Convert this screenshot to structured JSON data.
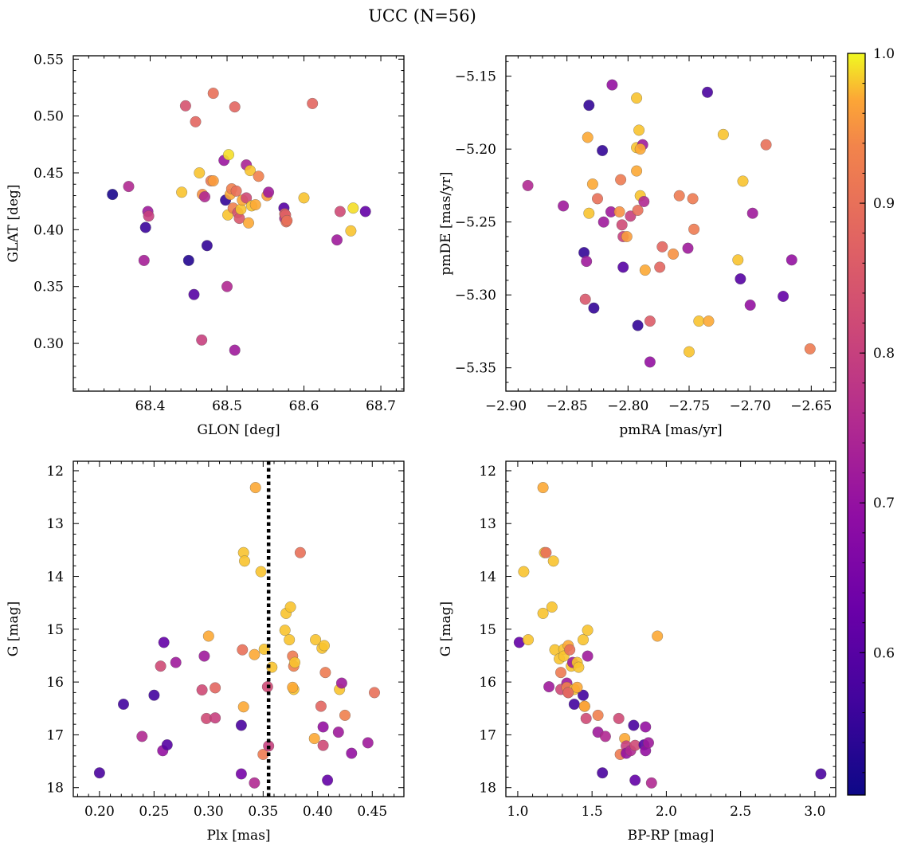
{
  "figure_title": "UCC (N=56)",
  "colorbar": {
    "colormap": "plasma",
    "range": [
      0.505,
      1.0
    ],
    "ticks": [
      0.6,
      0.7,
      0.8,
      0.9,
      1.0
    ],
    "tick_labels": [
      "0.6",
      "0.7",
      "0.8",
      "0.9",
      "1.0"
    ]
  },
  "chart_data": [
    {
      "type": "scatter",
      "xlabel": "GLON [deg]",
      "ylabel": "GLAT [deg]",
      "xlim": [
        68.3,
        68.73
      ],
      "ylim": [
        0.258,
        0.553
      ],
      "y_inverted": false,
      "xticks": [
        68.4,
        68.5,
        68.6,
        68.7
      ],
      "xtick_labels": [
        "68.4",
        "68.5",
        "68.6",
        "68.7"
      ],
      "yticks": [
        0.3,
        0.35,
        0.4,
        0.45,
        0.5,
        0.55
      ],
      "ytick_labels": [
        "0.30",
        "0.35",
        "0.40",
        "0.45",
        "0.50",
        "0.55"
      ],
      "points": [
        [
          68.351,
          0.431,
          0.52
        ],
        [
          68.372,
          0.438,
          0.75
        ],
        [
          68.392,
          0.373,
          0.73
        ],
        [
          68.394,
          0.402,
          0.56
        ],
        [
          68.397,
          0.416,
          0.72
        ],
        [
          68.398,
          0.412,
          0.8
        ],
        [
          68.441,
          0.433,
          0.98
        ],
        [
          68.446,
          0.509,
          0.84
        ],
        [
          68.45,
          0.373,
          0.53
        ],
        [
          68.457,
          0.343,
          0.6
        ],
        [
          68.459,
          0.495,
          0.88
        ],
        [
          68.464,
          0.45,
          0.98
        ],
        [
          68.467,
          0.303,
          0.8
        ],
        [
          68.468,
          0.431,
          0.95
        ],
        [
          68.471,
          0.429,
          0.75
        ],
        [
          68.474,
          0.386,
          0.55
        ],
        [
          68.479,
          0.443,
          0.92
        ],
        [
          68.482,
          0.52,
          0.9
        ],
        [
          68.482,
          0.443,
          0.96
        ],
        [
          68.496,
          0.461,
          0.71
        ],
        [
          68.498,
          0.426,
          0.55
        ],
        [
          68.5,
          0.35,
          0.75
        ],
        [
          68.501,
          0.413,
          0.98
        ],
        [
          68.502,
          0.466,
          0.99
        ],
        [
          68.504,
          0.431,
          0.97
        ],
        [
          68.506,
          0.436,
          0.93
        ],
        [
          68.508,
          0.419,
          0.93
        ],
        [
          68.51,
          0.508,
          0.88
        ],
        [
          68.51,
          0.294,
          0.72
        ],
        [
          68.512,
          0.434,
          0.9
        ],
        [
          68.514,
          0.415,
          0.84
        ],
        [
          68.516,
          0.41,
          0.85
        ],
        [
          68.518,
          0.418,
          0.98
        ],
        [
          68.52,
          0.426,
          0.97
        ],
        [
          68.525,
          0.457,
          0.74
        ],
        [
          68.525,
          0.428,
          0.82
        ],
        [
          68.528,
          0.406,
          0.97
        ],
        [
          68.53,
          0.452,
          0.98
        ],
        [
          68.532,
          0.421,
          0.98
        ],
        [
          68.537,
          0.422,
          0.97
        ],
        [
          68.541,
          0.447,
          0.93
        ],
        [
          68.552,
          0.43,
          0.96
        ],
        [
          68.554,
          0.433,
          0.72
        ],
        [
          68.574,
          0.419,
          0.6
        ],
        [
          68.575,
          0.41,
          0.75
        ],
        [
          68.575,
          0.414,
          0.88
        ],
        [
          68.576,
          0.413,
          0.87
        ],
        [
          68.577,
          0.407,
          0.9
        ],
        [
          68.6,
          0.428,
          0.98
        ],
        [
          68.611,
          0.511,
          0.88
        ],
        [
          68.643,
          0.391,
          0.72
        ],
        [
          68.647,
          0.416,
          0.82
        ],
        [
          68.661,
          0.399,
          0.98
        ],
        [
          68.664,
          0.419,
          0.99
        ],
        [
          68.68,
          0.416,
          0.62
        ],
        [
          68.578,
          0.408,
          0.9
        ]
      ]
    },
    {
      "type": "scatter",
      "xlabel": "pmRA [mas/yr]",
      "ylabel": "pmDE [mas/yr]",
      "xlim": [
        -2.9,
        -2.63
      ],
      "ylim": [
        -5.366,
        -5.136
      ],
      "y_inverted": false,
      "xticks": [
        -2.9,
        -2.85,
        -2.8,
        -2.75,
        -2.7,
        -2.65
      ],
      "xtick_labels": [
        "−2.90",
        "−2.85",
        "−2.80",
        "−2.75",
        "−2.70",
        "−2.65"
      ],
      "yticks": [
        -5.35,
        -5.3,
        -5.25,
        -5.2,
        -5.15
      ],
      "ytick_labels": [
        "−5.35",
        "−5.30",
        "−5.25",
        "−5.20",
        "−5.15"
      ],
      "points": [
        [
          -2.882,
          -5.225,
          0.75
        ],
        [
          -2.853,
          -5.239,
          0.72
        ],
        [
          -2.836,
          -5.271,
          0.55
        ],
        [
          -2.835,
          -5.303,
          0.85
        ],
        [
          -2.834,
          -5.277,
          0.72
        ],
        [
          -2.833,
          -5.192,
          0.97
        ],
        [
          -2.832,
          -5.17,
          0.55
        ],
        [
          -2.832,
          -5.244,
          0.98
        ],
        [
          -2.829,
          -5.224,
          0.97
        ],
        [
          -2.828,
          -5.309,
          0.55
        ],
        [
          -2.825,
          -5.234,
          0.9
        ],
        [
          -2.821,
          -5.201,
          0.55
        ],
        [
          -2.82,
          -5.25,
          0.72
        ],
        [
          -2.814,
          -5.243,
          0.72
        ],
        [
          -2.813,
          -5.156,
          0.7
        ],
        [
          -2.807,
          -5.243,
          0.95
        ],
        [
          -2.806,
          -5.221,
          0.92
        ],
        [
          -2.805,
          -5.252,
          0.82
        ],
        [
          -2.804,
          -5.26,
          0.8
        ],
        [
          -2.804,
          -5.281,
          0.6
        ],
        [
          -2.801,
          -5.26,
          0.96
        ],
        [
          -2.798,
          -5.246,
          0.8
        ],
        [
          -2.793,
          -5.165,
          0.98
        ],
        [
          -2.793,
          -5.215,
          0.97
        ],
        [
          -2.793,
          -5.199,
          0.98
        ],
        [
          -2.792,
          -5.321,
          0.55
        ],
        [
          -2.792,
          -5.242,
          0.9
        ],
        [
          -2.791,
          -5.187,
          0.98
        ],
        [
          -2.79,
          -5.232,
          0.98
        ],
        [
          -2.788,
          -5.197,
          0.72
        ],
        [
          -2.787,
          -5.236,
          0.75
        ],
        [
          -2.786,
          -5.283,
          0.97
        ],
        [
          -2.782,
          -5.346,
          0.7
        ],
        [
          -2.782,
          -5.318,
          0.86
        ],
        [
          -2.774,
          -5.281,
          0.88
        ],
        [
          -2.772,
          -5.267,
          0.88
        ],
        [
          -2.763,
          -5.272,
          0.95
        ],
        [
          -2.758,
          -5.232,
          0.92
        ],
        [
          -2.751,
          -5.268,
          0.72
        ],
        [
          -2.75,
          -5.339,
          0.98
        ],
        [
          -2.747,
          -5.234,
          0.92
        ],
        [
          -2.746,
          -5.255,
          0.92
        ],
        [
          -2.742,
          -5.318,
          0.98
        ],
        [
          -2.735,
          -5.161,
          0.58
        ],
        [
          -2.734,
          -5.318,
          0.97
        ],
        [
          -2.722,
          -5.19,
          0.98
        ],
        [
          -2.71,
          -5.276,
          0.98
        ],
        [
          -2.708,
          -5.289,
          0.6
        ],
        [
          -2.706,
          -5.222,
          0.98
        ],
        [
          -2.7,
          -5.307,
          0.7
        ],
        [
          -2.698,
          -5.244,
          0.72
        ],
        [
          -2.687,
          -5.197,
          0.9
        ],
        [
          -2.673,
          -5.301,
          0.62
        ],
        [
          -2.666,
          -5.276,
          0.7
        ],
        [
          -2.651,
          -5.337,
          0.92
        ],
        [
          -2.79,
          -5.2,
          0.97
        ]
      ]
    },
    {
      "type": "scatter",
      "xlabel": "Plx [mas]",
      "ylabel": "G [mag]",
      "xlim": [
        0.176,
        0.479
      ],
      "ylim": [
        11.82,
        18.17
      ],
      "y_inverted": true,
      "xticks": [
        0.2,
        0.25,
        0.3,
        0.35,
        0.4,
        0.45
      ],
      "xtick_labels": [
        "0.20",
        "0.25",
        "0.30",
        "0.35",
        "0.40",
        "0.45"
      ],
      "yticks": [
        12,
        13,
        14,
        15,
        16,
        17,
        18
      ],
      "ytick_labels": [
        "12",
        "13",
        "14",
        "15",
        "16",
        "17",
        "18"
      ],
      "vline": {
        "x": 0.355,
        "style": "dotted",
        "color": "#000000"
      },
      "points": [
        [
          0.2,
          17.72,
          0.58
        ],
        [
          0.222,
          16.42,
          0.57
        ],
        [
          0.239,
          17.03,
          0.75
        ],
        [
          0.25,
          16.25,
          0.57
        ],
        [
          0.256,
          15.7,
          0.82
        ],
        [
          0.258,
          17.3,
          0.7
        ],
        [
          0.259,
          15.25,
          0.62
        ],
        [
          0.262,
          17.19,
          0.6
        ],
        [
          0.27,
          15.63,
          0.72
        ],
        [
          0.294,
          16.15,
          0.82
        ],
        [
          0.296,
          15.51,
          0.72
        ],
        [
          0.298,
          16.69,
          0.82
        ],
        [
          0.3,
          15.13,
          0.97
        ],
        [
          0.306,
          16.11,
          0.88
        ],
        [
          0.306,
          16.68,
          0.8
        ],
        [
          0.33,
          16.82,
          0.58
        ],
        [
          0.33,
          17.74,
          0.65
        ],
        [
          0.331,
          15.39,
          0.9
        ],
        [
          0.332,
          16.47,
          0.97
        ],
        [
          0.332,
          13.55,
          0.98
        ],
        [
          0.333,
          13.71,
          0.98
        ],
        [
          0.342,
          17.91,
          0.75
        ],
        [
          0.342,
          15.48,
          0.97
        ],
        [
          0.343,
          12.32,
          0.97
        ],
        [
          0.348,
          13.91,
          0.98
        ],
        [
          0.35,
          17.37,
          0.92
        ],
        [
          0.351,
          15.38,
          0.98
        ],
        [
          0.354,
          16.09,
          0.82
        ],
        [
          0.355,
          17.21,
          0.8
        ],
        [
          0.358,
          15.72,
          0.98
        ],
        [
          0.37,
          15.02,
          0.98
        ],
        [
          0.371,
          14.7,
          0.98
        ],
        [
          0.374,
          15.2,
          0.98
        ],
        [
          0.375,
          14.58,
          0.98
        ],
        [
          0.377,
          15.51,
          0.92
        ],
        [
          0.378,
          16.14,
          0.98
        ],
        [
          0.378,
          15.7,
          0.93
        ],
        [
          0.379,
          15.63,
          0.98
        ],
        [
          0.384,
          13.55,
          0.9
        ],
        [
          0.397,
          17.07,
          0.97
        ],
        [
          0.398,
          15.2,
          0.98
        ],
        [
          0.403,
          16.46,
          0.88
        ],
        [
          0.404,
          15.36,
          0.98
        ],
        [
          0.405,
          16.85,
          0.7
        ],
        [
          0.405,
          17.2,
          0.82
        ],
        [
          0.406,
          15.31,
          0.98
        ],
        [
          0.407,
          15.82,
          0.92
        ],
        [
          0.409,
          17.86,
          0.62
        ],
        [
          0.419,
          16.95,
          0.72
        ],
        [
          0.42,
          16.14,
          0.98
        ],
        [
          0.422,
          16.02,
          0.72
        ],
        [
          0.425,
          16.63,
          0.93
        ],
        [
          0.431,
          17.35,
          0.7
        ],
        [
          0.446,
          17.15,
          0.72
        ],
        [
          0.452,
          16.2,
          0.9
        ],
        [
          0.377,
          16.1,
          0.97
        ]
      ]
    },
    {
      "type": "scatter",
      "xlabel": "BP-RP [mag]",
      "ylabel": "G [mag]",
      "xlim": [
        0.92,
        3.14
      ],
      "ylim": [
        11.82,
        18.17
      ],
      "y_inverted": true,
      "xticks": [
        1.0,
        1.5,
        2.0,
        2.5,
        3.0
      ],
      "xtick_labels": [
        "1.0",
        "1.5",
        "2.0",
        "2.5",
        "3.0"
      ],
      "yticks": [
        12,
        13,
        14,
        15,
        16,
        17,
        18
      ],
      "ytick_labels": [
        "12",
        "13",
        "14",
        "15",
        "16",
        "17",
        "18"
      ],
      "points": [
        [
          1.01,
          15.25,
          0.62
        ],
        [
          1.04,
          13.91,
          0.98
        ],
        [
          1.07,
          15.2,
          0.98
        ],
        [
          1.17,
          12.32,
          0.97
        ],
        [
          1.17,
          14.7,
          0.98
        ],
        [
          1.18,
          13.55,
          0.98
        ],
        [
          1.19,
          13.55,
          0.9
        ],
        [
          1.21,
          16.09,
          0.72
        ],
        [
          1.23,
          14.58,
          0.98
        ],
        [
          1.24,
          13.71,
          0.98
        ],
        [
          1.25,
          15.39,
          0.98
        ],
        [
          1.28,
          15.56,
          0.98
        ],
        [
          1.29,
          16.14,
          0.82
        ],
        [
          1.29,
          15.82,
          0.92
        ],
        [
          1.31,
          15.38,
          0.98
        ],
        [
          1.31,
          15.51,
          0.98
        ],
        [
          1.33,
          16.02,
          0.72
        ],
        [
          1.33,
          16.1,
          0.93
        ],
        [
          1.34,
          16.2,
          0.9
        ],
        [
          1.34,
          15.31,
          0.97
        ],
        [
          1.35,
          15.39,
          0.9
        ],
        [
          1.36,
          15.7,
          0.98
        ],
        [
          1.37,
          15.63,
          0.72
        ],
        [
          1.38,
          16.14,
          0.98
        ],
        [
          1.38,
          16.42,
          0.57
        ],
        [
          1.4,
          15.63,
          0.98
        ],
        [
          1.41,
          15.72,
          0.98
        ],
        [
          1.44,
          16.25,
          0.57
        ],
        [
          1.44,
          15.2,
          0.98
        ],
        [
          1.45,
          16.46,
          0.92
        ],
        [
          1.46,
          16.69,
          0.82
        ],
        [
          1.47,
          15.02,
          0.98
        ],
        [
          1.47,
          15.51,
          0.72
        ],
        [
          1.54,
          16.63,
          0.93
        ],
        [
          1.54,
          16.95,
          0.72
        ],
        [
          1.57,
          17.72,
          0.58
        ],
        [
          1.59,
          17.03,
          0.75
        ],
        [
          1.68,
          16.69,
          0.82
        ],
        [
          1.69,
          17.37,
          0.92
        ],
        [
          1.72,
          17.07,
          0.97
        ],
        [
          1.73,
          17.21,
          0.8
        ],
        [
          1.73,
          17.35,
          0.7
        ],
        [
          1.76,
          17.3,
          0.75
        ],
        [
          1.78,
          16.82,
          0.58
        ],
        [
          1.79,
          17.2,
          0.82
        ],
        [
          1.79,
          17.86,
          0.62
        ],
        [
          1.85,
          17.19,
          0.6
        ],
        [
          1.86,
          16.85,
          0.7
        ],
        [
          1.86,
          17.3,
          0.7
        ],
        [
          1.88,
          17.15,
          0.72
        ],
        [
          1.9,
          17.91,
          0.75
        ],
        [
          1.94,
          15.13,
          0.97
        ],
        [
          3.04,
          17.74,
          0.58
        ],
        [
          1.34,
          16.2,
          0.88
        ],
        [
          1.45,
          16.46,
          0.97
        ],
        [
          1.4,
          16.1,
          0.97
        ]
      ]
    }
  ]
}
